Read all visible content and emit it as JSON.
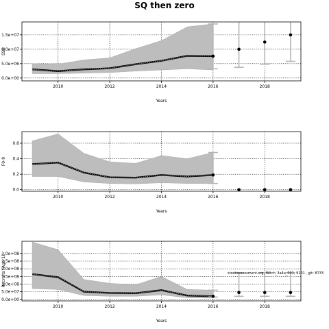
{
  "figure": {
    "title": "SQ then zero"
  },
  "chart_data": [
    {
      "type": "line",
      "title": "SQ then zero",
      "xlabel": "Years",
      "ylabel": "SSB",
      "xlim": [
        2008.6,
        2019.4
      ],
      "ylim": [
        -1000000.0,
        19500000.0
      ],
      "xticks": [
        2010,
        2012,
        2014,
        2016,
        2018
      ],
      "xtick_labels": [
        "2010",
        "2012",
        "2014",
        "2016",
        "2018"
      ],
      "yticks": [
        0,
        5000000.0,
        10000000.0,
        15000000.0
      ],
      "ytick_labels": [
        "0.0e+00",
        "5.0e+06",
        "1.0e+07",
        "1.5e+07"
      ],
      "grid": true,
      "annotation": "",
      "historical": {
        "x": [
          2009,
          2010,
          2011,
          2012,
          2013,
          2014,
          2015,
          2016
        ],
        "median": [
          3000000.0,
          2400000.0,
          3000000.0,
          3400000.0,
          4800000.0,
          6000000.0,
          7700000.0,
          7600000.0
        ],
        "lower": [
          1500000.0,
          1500000.0,
          1700000.0,
          1900000.0,
          2400000.0,
          2800000.0,
          3200000.0,
          2800000.0
        ],
        "upper": [
          5000000.0,
          4800000.0,
          6300000.0,
          7000000.0,
          10200000.0,
          13000000.0,
          17800000.0,
          18800000.0
        ]
      },
      "projection": {
        "x": [
          2016,
          2017,
          2018,
          2019
        ],
        "median": [
          7600000.0,
          10000000.0,
          12500000.0,
          15000000.0
        ],
        "lower": [
          3200000.0,
          3700000.0,
          4800000.0,
          5800000.0
        ],
        "upper": [
          18800000.0,
          20000000.0,
          20000000.0,
          20000000.0
        ]
      }
    },
    {
      "type": "line",
      "title": "",
      "xlabel": "Years",
      "ylabel": "F0-9",
      "xlim": [
        2008.6,
        2019.4
      ],
      "ylim": [
        -0.02,
        0.75
      ],
      "xticks": [
        2010,
        2012,
        2014,
        2016,
        2018
      ],
      "xtick_labels": [
        "2010",
        "2012",
        "2014",
        "2016",
        "2018"
      ],
      "yticks": [
        0,
        0.2,
        0.4,
        0.6
      ],
      "ytick_labels": [
        "0.0",
        "0.2",
        "0.4",
        "0.6"
      ],
      "grid": true,
      "annotation": "",
      "historical": {
        "x": [
          2009,
          2010,
          2011,
          2012,
          2013,
          2014,
          2015,
          2016
        ],
        "median": [
          0.33,
          0.35,
          0.22,
          0.16,
          0.155,
          0.19,
          0.17,
          0.19
        ],
        "lower": [
          0.17,
          0.17,
          0.1,
          0.08,
          0.075,
          0.09,
          0.08,
          0.08
        ],
        "upper": [
          0.63,
          0.72,
          0.47,
          0.36,
          0.34,
          0.44,
          0.4,
          0.48
        ]
      },
      "projection": {
        "x": [
          2016,
          2017,
          2018,
          2019
        ],
        "median": [
          0.19,
          0,
          0,
          0
        ],
        "lower": [
          0.08,
          0,
          0,
          0
        ],
        "upper": [
          0.48,
          0,
          0,
          0
        ]
      }
    },
    {
      "type": "line",
      "title": "",
      "xlabel": "Years",
      "ylabel": "Recruits (Age 1)",
      "xlim": [
        2008.6,
        2019.4
      ],
      "ylim": [
        -10000000.0,
        380000000.0
      ],
      "xticks": [
        2010,
        2012,
        2014,
        2016,
        2018
      ],
      "xtick_labels": [
        "2010",
        "2012",
        "2014",
        "2016",
        "2018"
      ],
      "yticks": [
        0,
        50000000.0,
        100000000.0,
        150000000.0,
        200000000.0,
        250000000.0,
        300000000.0
      ],
      "ytick_labels": [
        "0.0e+00",
        "5.0e+07",
        "1.0e+08",
        "1.5e+08",
        "2.0e+08",
        "2.5e+08",
        "3.0e+08"
      ],
      "grid": true,
      "annotation": "stockassessment.org, Witch_3a4a_001, 9101 , git: 8733",
      "historical": {
        "x": [
          2009,
          2010,
          2011,
          2012,
          2013,
          2014,
          2015,
          2016
        ],
        "median": [
          165000000.0,
          145000000.0,
          50000000.0,
          42000000.0,
          40000000.0,
          60000000.0,
          25000000.0,
          20000000.0
        ],
        "lower": [
          70000000.0,
          65000000.0,
          25000000.0,
          20000000.0,
          20000000.0,
          30000000.0,
          10000000.0,
          8000000.0
        ],
        "upper": [
          375000000.0,
          325000000.0,
          130000000.0,
          105000000.0,
          95000000.0,
          150000000.0,
          65000000.0,
          60000000.0
        ]
      },
      "projection": {
        "x": [
          2016,
          2017,
          2018,
          2019
        ],
        "median": [
          20000000.0,
          45000000.0,
          45000000.0,
          45000000.0
        ],
        "lower": [
          15000000.0,
          20000000.0,
          20000000.0,
          20000000.0
        ],
        "upper": [
          60000000.0,
          175000000.0,
          175000000.0,
          175000000.0
        ]
      }
    }
  ]
}
